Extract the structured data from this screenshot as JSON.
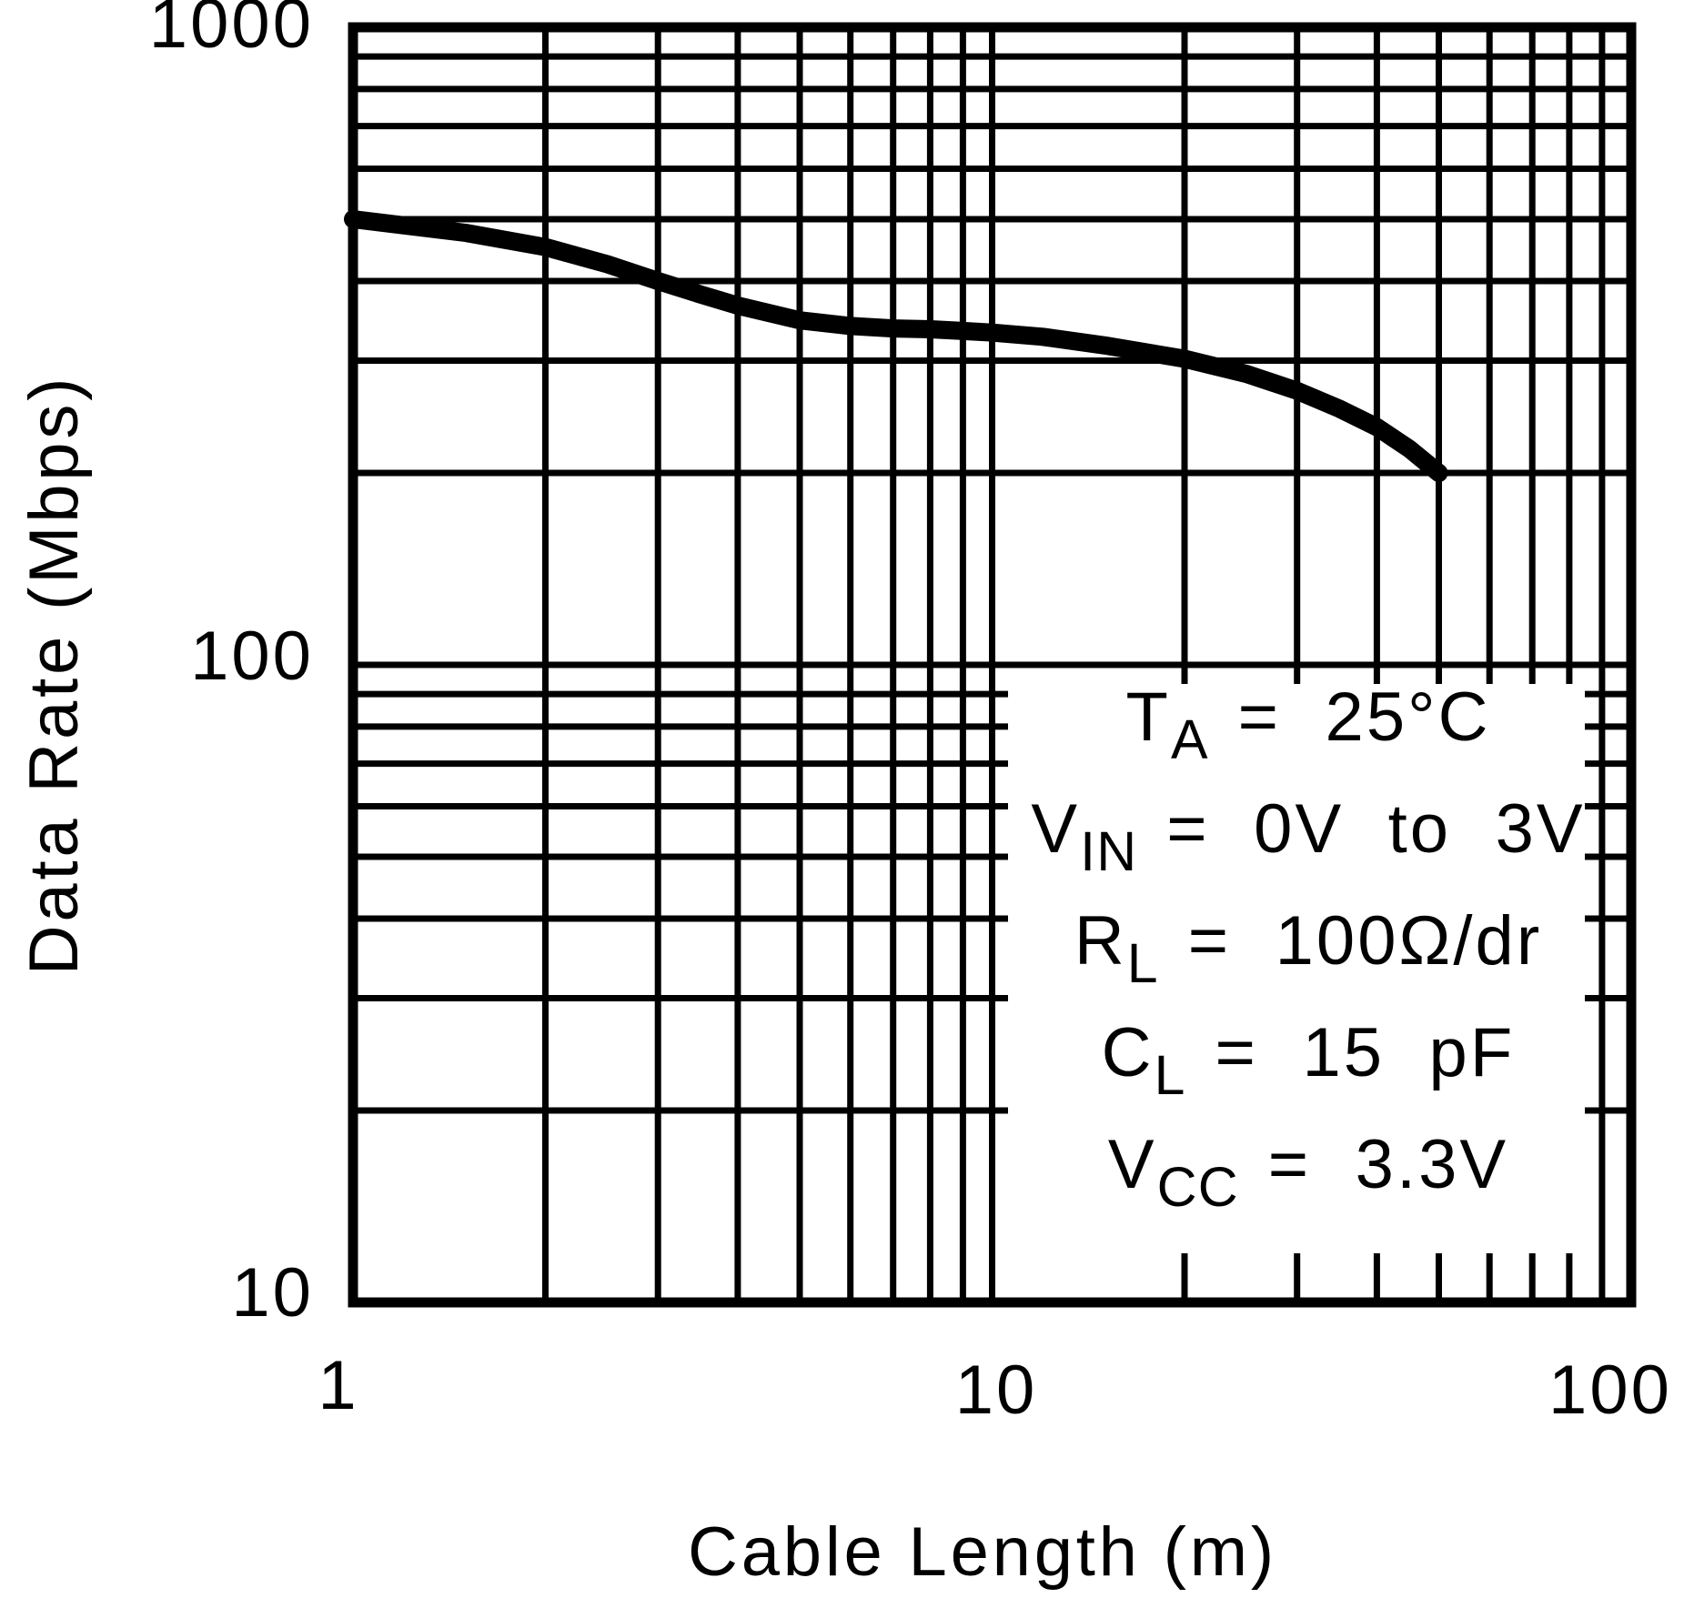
{
  "page": {
    "background_color": "#ffffff",
    "ink_color": "#000000"
  },
  "chart_data": {
    "type": "line",
    "title": "",
    "xlabel": "Cable Length (m)",
    "ylabel": "Data Rate (Mbps)",
    "x_scale": "log",
    "y_scale": "log",
    "xlim": [
      1,
      100
    ],
    "ylim": [
      10,
      1000
    ],
    "x_tick_labels": [
      "1",
      "10",
      "100"
    ],
    "y_tick_labels": [
      "10",
      "100",
      "1000"
    ],
    "grid": "full log minor grid, black on white",
    "legend": "none",
    "series": [
      {
        "name": "data-rate-vs-cable-length",
        "color": "#000000",
        "x": [
          1,
          1.5,
          2,
          2.5,
          3,
          3.5,
          4,
          5,
          6,
          7,
          8,
          9,
          10,
          12,
          15,
          20,
          25,
          30,
          35,
          40,
          45,
          50
        ],
        "y": [
          500,
          476,
          452,
          425,
          400,
          381,
          366,
          347,
          340,
          337,
          336,
          334,
          332,
          327,
          317,
          302,
          286,
          269,
          252,
          236,
          218,
          200
        ]
      }
    ],
    "conditions": [
      {
        "sym": "T",
        "sub": "A",
        "rest": "= 25°C"
      },
      {
        "sym": "V",
        "sub": "IN",
        "rest": "= 0V to 3V"
      },
      {
        "sym": "R",
        "sub": "L",
        "rest": "= 100Ω/dr"
      },
      {
        "sym": "C",
        "sub": "L",
        "rest": "= 15 pF"
      },
      {
        "sym": "V",
        "sub": "CC",
        "rest": "= 3.3V"
      }
    ]
  }
}
